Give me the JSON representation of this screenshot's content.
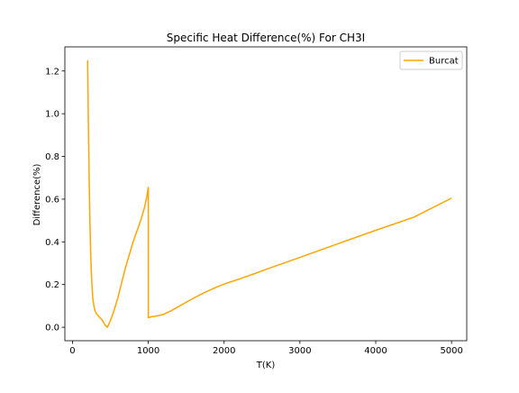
{
  "chart_data": {
    "type": "line",
    "title": "Specific Heat Difference(%) For CH3I",
    "xlabel": "T(K)",
    "ylabel": "Difference(%)",
    "xlim": [
      -100,
      5200
    ],
    "ylim": [
      -0.063,
      1.313
    ],
    "x_ticks": [
      0,
      1000,
      2000,
      3000,
      4000,
      5000
    ],
    "y_ticks": [
      0.0,
      0.2,
      0.4,
      0.6,
      0.8,
      1.0,
      1.2
    ],
    "x_tick_labels": [
      "0",
      "1000",
      "2000",
      "3000",
      "4000",
      "5000"
    ],
    "y_tick_labels": [
      "0.0",
      "0.2",
      "0.4",
      "0.6",
      "0.8",
      "1.0",
      "1.2"
    ],
    "grid": false,
    "legend_position": "top-right",
    "series": [
      {
        "name": "Burcat",
        "color": "#FFA500",
        "x": [
          200,
          210,
          220,
          230,
          240,
          250,
          260,
          270,
          285,
          300,
          320,
          350,
          400,
          430,
          460,
          500,
          550,
          600,
          650,
          700,
          750,
          800,
          850,
          900,
          950,
          980,
          1000,
          1000,
          1050,
          1100,
          1200,
          1300,
          1400,
          1500,
          1600,
          1700,
          1800,
          1900,
          2000,
          2200,
          2400,
          2600,
          2800,
          3000,
          3500,
          4000,
          4500,
          5000
        ],
        "y": [
          1.25,
          0.95,
          0.7,
          0.5,
          0.35,
          0.25,
          0.18,
          0.13,
          0.095,
          0.075,
          0.062,
          0.05,
          0.03,
          0.01,
          0.0,
          0.03,
          0.08,
          0.14,
          0.21,
          0.28,
          0.34,
          0.4,
          0.45,
          0.5,
          0.56,
          0.61,
          0.655,
          0.045,
          0.05,
          0.052,
          0.06,
          0.077,
          0.097,
          0.117,
          0.137,
          0.155,
          0.172,
          0.188,
          0.202,
          0.226,
          0.251,
          0.277,
          0.302,
          0.327,
          0.391,
          0.454,
          0.515,
          0.605
        ]
      }
    ]
  }
}
